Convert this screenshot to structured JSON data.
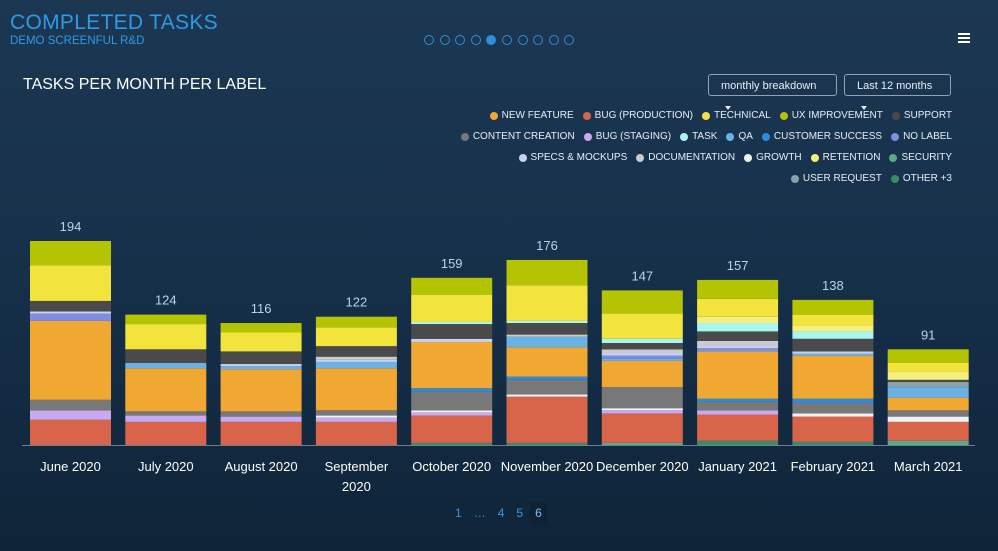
{
  "header": {
    "title": "COMPLETED TASKS",
    "subtitle": "DEMO SCREENFUL R&D"
  },
  "controls": {
    "breakdown": "monthly breakdown",
    "range": "Last 12 months"
  },
  "pagination": [
    "1",
    "…",
    "4",
    "5",
    "6"
  ],
  "chart_data": {
    "type": "stacked_bar",
    "title": "TASKS PER MONTH PER LABEL",
    "categories": [
      "June 2020",
      "July 2020",
      "August 2020",
      "September 2020",
      "October 2020",
      "November 2020",
      "December 2020",
      "January 2021",
      "February 2021",
      "March 2021"
    ],
    "totals": [
      194,
      124,
      116,
      122,
      159,
      176,
      147,
      157,
      138,
      91
    ],
    "series": [
      {
        "name": "NEW FEATURE",
        "color": "#f0a832",
        "values": [
          75,
          41,
          40,
          40,
          44,
          28,
          25,
          45,
          41,
          12
        ]
      },
      {
        "name": "BUG (PRODUCTION)",
        "color": "#d8644a",
        "values": [
          24,
          22,
          22,
          22,
          26,
          44,
          28,
          25,
          24,
          18
        ]
      },
      {
        "name": "TECHNICAL",
        "color": "#f2e43c",
        "values": [
          34,
          24,
          18,
          18,
          26,
          34,
          24,
          17,
          10,
          8
        ]
      },
      {
        "name": "UX IMPROVEMENT",
        "color": "#b5c402",
        "values": [
          23,
          9,
          9,
          10,
          16,
          24,
          22,
          18,
          14,
          13
        ]
      },
      {
        "name": "SUPPORT",
        "color": "#4a4a4a",
        "values": [
          10,
          13,
          12,
          10,
          14,
          11,
          6,
          9,
          12,
          2
        ]
      },
      {
        "name": "CONTENT CREATION",
        "color": "#787878",
        "values": [
          10,
          4,
          5,
          5,
          18,
          14,
          20,
          8,
          10,
          6
        ]
      },
      {
        "name": "BUG (STAGING)",
        "color": "#c9a9ef",
        "values": [
          9,
          6,
          5,
          4,
          3,
          0,
          3,
          4,
          0,
          0
        ]
      },
      {
        "name": "TASK",
        "color": "#a9f5f0",
        "values": [
          0,
          0,
          0,
          0,
          2,
          2,
          4,
          8,
          7,
          0
        ]
      },
      {
        "name": "QA",
        "color": "#6ab1e6",
        "values": [
          0,
          5,
          3,
          6,
          0,
          10,
          2,
          0,
          2,
          10
        ]
      },
      {
        "name": "CUSTOMER SUCCESS",
        "color": "#2b8ddf",
        "values": [
          0,
          0,
          0,
          0,
          3,
          3,
          0,
          3,
          4,
          0
        ]
      },
      {
        "name": "NO LABEL",
        "color": "#7f8ee0",
        "values": [
          7,
          0,
          0,
          0,
          0,
          0,
          3,
          3,
          0,
          0
        ]
      },
      {
        "name": "SPECS & MOCKUPS",
        "color": "#c9d1f2",
        "values": [
          2,
          0,
          2,
          2,
          3,
          0,
          3,
          3,
          2,
          0
        ]
      },
      {
        "name": "DOCUMENTATION",
        "color": "#cccccc",
        "values": [
          0,
          0,
          0,
          3,
          0,
          2,
          3,
          4,
          0,
          0
        ]
      },
      {
        "name": "GROWTH",
        "color": "#f2f2f2",
        "values": [
          0,
          0,
          0,
          2,
          2,
          2,
          2,
          0,
          3,
          5
        ]
      },
      {
        "name": "RETENTION",
        "color": "#f5f07c",
        "values": [
          0,
          0,
          0,
          0,
          0,
          0,
          0,
          6,
          6,
          8
        ]
      },
      {
        "name": "SECURITY",
        "color": "#5aaa8b",
        "values": [
          0,
          0,
          0,
          0,
          0,
          0,
          2,
          0,
          0,
          4
        ]
      },
      {
        "name": "USER REQUEST",
        "color": "#8aa1a9",
        "values": [
          0,
          0,
          0,
          0,
          0,
          0,
          0,
          0,
          0,
          5
        ]
      },
      {
        "name": "OTHER +3",
        "color": "#3b8a6b",
        "values": [
          0,
          0,
          0,
          0,
          2,
          2,
          0,
          4,
          3,
          0
        ]
      }
    ]
  }
}
